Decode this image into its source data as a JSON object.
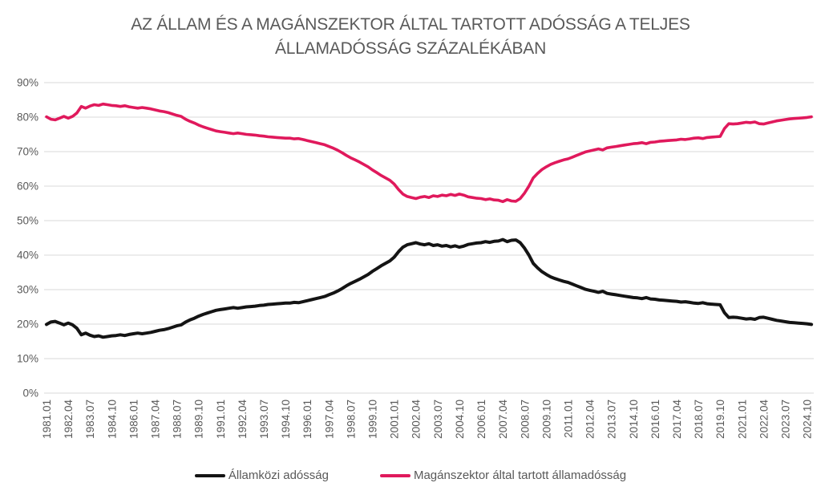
{
  "chart": {
    "title": "AZ ÁLLAM ÉS A MAGÁNSZEKTOR ÁLTAL TARTOTT ADÓSSÁG A TELJES ÁLLAMADÓSSÁG SZÁZALÉKÁBAN",
    "title_color": "#595959",
    "gridline_color": "#d9d9d9",
    "tick_label_color": "#595959"
  },
  "chart_data": {
    "type": "line",
    "title": "AZ ÁLLAM ÉS A MAGÁNSZEKTOR ÁLTAL TARTOTT ADÓSSÁG A TELJES ÁLLAMADÓSSÁG SZÁZALÉKÁBAN",
    "xlabel": "",
    "ylabel": "",
    "ylim": [
      0,
      90
    ],
    "y_tick_step": 10,
    "y_tick_suffix": "%",
    "grid": "horizontal",
    "legend_position": "bottom",
    "x_frequency": "quarterly",
    "x_start": "1981.01",
    "x_end": "2025.01",
    "x_tick_labels": [
      "1981.01",
      "1982.04",
      "1983.07",
      "1984.10",
      "1986.01",
      "1987.04",
      "1988.07",
      "1989.10",
      "1991.01",
      "1992.04",
      "1993.07",
      "1994.10",
      "1996.01",
      "1997.04",
      "1998.07",
      "1999.10",
      "2001.01",
      "2002.04",
      "2003.07",
      "2004.10",
      "2006.01",
      "2007.04",
      "2008.07",
      "2009.10",
      "2011.01",
      "2012.04",
      "2013.07",
      "2014.10",
      "2016.01",
      "2017.04",
      "2018.07",
      "2019.10",
      "2021.01",
      "2022.04",
      "2023.07",
      "2024.10"
    ],
    "x_ticks_every_n_points": 5,
    "y_tick_labels": [
      "0%",
      "10%",
      "20%",
      "30%",
      "40%",
      "50%",
      "60%",
      "70%",
      "80%",
      "90%"
    ],
    "series": [
      {
        "name": "Államközi adósság",
        "slug": "allamkozi-adossag",
        "color": "#141414",
        "stroke_width": 4,
        "values": [
          19.9,
          20.6,
          20.8,
          20.3,
          19.8,
          20.3,
          19.8,
          18.8,
          16.9,
          17.4,
          16.8,
          16.4,
          16.6,
          16.2,
          16.4,
          16.6,
          16.7,
          16.9,
          16.7,
          17.0,
          17.2,
          17.4,
          17.2,
          17.4,
          17.6,
          17.9,
          18.2,
          18.4,
          18.7,
          19.1,
          19.5,
          19.8,
          20.6,
          21.2,
          21.7,
          22.3,
          22.8,
          23.2,
          23.6,
          24.0,
          24.2,
          24.4,
          24.6,
          24.8,
          24.6,
          24.8,
          25.0,
          25.1,
          25.2,
          25.4,
          25.5,
          25.7,
          25.8,
          25.9,
          26.0,
          26.1,
          26.1,
          26.3,
          26.2,
          26.5,
          26.8,
          27.1,
          27.4,
          27.7,
          28.0,
          28.5,
          29.0,
          29.6,
          30.3,
          31.1,
          31.8,
          32.4,
          33.0,
          33.7,
          34.4,
          35.3,
          36.1,
          36.9,
          37.6,
          38.3,
          39.4,
          41.0,
          42.3,
          43.0,
          43.3,
          43.6,
          43.2,
          43.0,
          43.3,
          42.8,
          43.0,
          42.6,
          42.8,
          42.4,
          42.7,
          42.3,
          42.6,
          43.1,
          43.3,
          43.5,
          43.6,
          43.9,
          43.7,
          44.0,
          44.1,
          44.5,
          43.9,
          44.3,
          44.4,
          43.6,
          42.0,
          40.0,
          37.6,
          36.3,
          35.2,
          34.4,
          33.7,
          33.2,
          32.8,
          32.4,
          32.1,
          31.6,
          31.1,
          30.6,
          30.1,
          29.8,
          29.5,
          29.2,
          29.5,
          28.9,
          28.7,
          28.5,
          28.3,
          28.1,
          27.9,
          27.7,
          27.6,
          27.4,
          27.7,
          27.3,
          27.2,
          27.0,
          26.9,
          26.8,
          26.7,
          26.6,
          26.4,
          26.5,
          26.3,
          26.1,
          26.0,
          26.2,
          25.9,
          25.8,
          25.7,
          25.6,
          23.3,
          21.9,
          22.0,
          21.9,
          21.7,
          21.5,
          21.6,
          21.4,
          21.9,
          22.0,
          21.7,
          21.4,
          21.1,
          20.9,
          20.7,
          20.5,
          20.4,
          20.3,
          20.2,
          20.1,
          19.9
        ]
      },
      {
        "name": "Magánszektor által tartott államadósság",
        "slug": "maganszektor-altal-tartott-allamadossag",
        "color": "#e0195c",
        "stroke_width": 3.6,
        "values": [
          80.1,
          79.4,
          79.2,
          79.7,
          80.2,
          79.7,
          80.2,
          81.2,
          83.1,
          82.6,
          83.2,
          83.6,
          83.4,
          83.8,
          83.6,
          83.4,
          83.3,
          83.1,
          83.3,
          83.0,
          82.8,
          82.6,
          82.8,
          82.6,
          82.4,
          82.1,
          81.8,
          81.6,
          81.3,
          80.9,
          80.5,
          80.2,
          79.4,
          78.8,
          78.3,
          77.7,
          77.2,
          76.8,
          76.4,
          76.0,
          75.8,
          75.6,
          75.4,
          75.2,
          75.4,
          75.2,
          75.0,
          74.9,
          74.8,
          74.6,
          74.5,
          74.3,
          74.2,
          74.1,
          74.0,
          73.9,
          73.9,
          73.7,
          73.8,
          73.5,
          73.2,
          72.9,
          72.6,
          72.3,
          72.0,
          71.5,
          71.0,
          70.4,
          69.7,
          68.9,
          68.2,
          67.6,
          67.0,
          66.3,
          65.6,
          64.7,
          63.9,
          63.1,
          62.4,
          61.7,
          60.6,
          59.0,
          57.7,
          57.0,
          56.7,
          56.4,
          56.8,
          57.0,
          56.7,
          57.2,
          57.0,
          57.4,
          57.2,
          57.6,
          57.3,
          57.7,
          57.4,
          56.9,
          56.7,
          56.5,
          56.4,
          56.1,
          56.3,
          56.0,
          55.9,
          55.5,
          56.1,
          55.7,
          55.6,
          56.4,
          58.0,
          60.0,
          62.4,
          63.7,
          64.8,
          65.6,
          66.3,
          66.8,
          67.2,
          67.6,
          67.9,
          68.4,
          68.9,
          69.4,
          69.9,
          70.2,
          70.5,
          70.8,
          70.5,
          71.1,
          71.3,
          71.5,
          71.7,
          71.9,
          72.1,
          72.3,
          72.4,
          72.6,
          72.3,
          72.7,
          72.8,
          73.0,
          73.1,
          73.2,
          73.3,
          73.4,
          73.6,
          73.5,
          73.7,
          73.9,
          74.0,
          73.8,
          74.1,
          74.2,
          74.3,
          74.4,
          76.7,
          78.1,
          78.0,
          78.1,
          78.3,
          78.5,
          78.4,
          78.6,
          78.1,
          78.0,
          78.3,
          78.6,
          78.9,
          79.1,
          79.3,
          79.5,
          79.6,
          79.7,
          79.8,
          79.9,
          80.1
        ]
      }
    ]
  },
  "legend": {
    "items": [
      {
        "label": "Államközi adósság",
        "color": "#141414"
      },
      {
        "label": "Magánszektor által tartott államadósság",
        "color": "#e0195c"
      }
    ]
  }
}
